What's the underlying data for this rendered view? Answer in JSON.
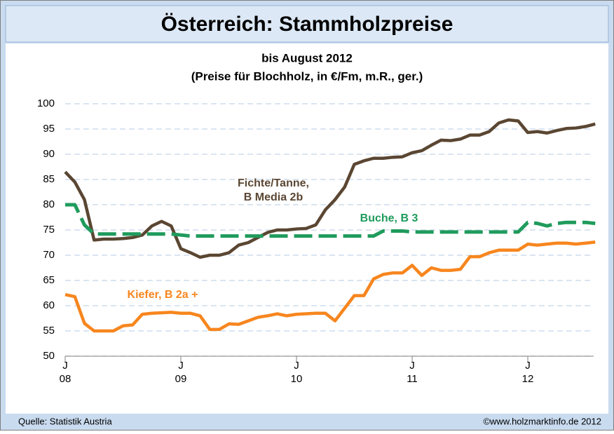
{
  "chart_data": {
    "type": "line",
    "title": "Österreich: Stammholzpreise",
    "subtitle": [
      "bis August 2012",
      "(Preise für Blochholz, in €/Fm, m.R., ger.)"
    ],
    "categories": [
      "J\n08",
      null,
      null,
      null,
      null,
      null,
      null,
      null,
      null,
      null,
      null,
      null,
      "J\n09",
      null,
      null,
      null,
      null,
      null,
      null,
      null,
      null,
      null,
      null,
      null,
      "J\n10",
      null,
      null,
      null,
      null,
      null,
      null,
      null,
      null,
      null,
      null,
      null,
      "J\n11",
      null,
      null,
      null,
      null,
      null,
      null,
      null,
      null,
      null,
      null,
      null,
      "J\n12",
      null,
      null,
      null,
      null,
      null,
      null,
      null
    ],
    "series": [
      {
        "name": "Fichte/Tanne,\nB Media 2b",
        "color": "#5a4632",
        "dash": false,
        "values": [
          86.5,
          84.5,
          81,
          73,
          73.2,
          73.2,
          73.3,
          73.5,
          74,
          75.8,
          76.7,
          75.8,
          71.3,
          70.5,
          69.6,
          70,
          70,
          70.5,
          72,
          72.5,
          73.5,
          74.5,
          75,
          75,
          75.2,
          75.3,
          76,
          79,
          81,
          83.5,
          88,
          88.7,
          89.2,
          89.2,
          89.4,
          89.5,
          90.3,
          90.7,
          91.8,
          92.8,
          92.7,
          93,
          93.8,
          93.8,
          94.5,
          96.2,
          96.8,
          96.6,
          94.3,
          94.5,
          94.2,
          94.7,
          95.1,
          95.2,
          95.5,
          96
        ]
      },
      {
        "name": "Buche, B 3",
        "color": "#1f9b5c",
        "dash": true,
        "values": [
          80,
          80,
          76,
          74.2,
          74.2,
          74.2,
          74.2,
          74.2,
          74.2,
          74.2,
          74.2,
          74.2,
          74,
          73.8,
          73.8,
          73.8,
          73.8,
          73.8,
          73.8,
          73.8,
          73.8,
          73.8,
          73.8,
          73.8,
          73.8,
          73.8,
          73.8,
          73.8,
          73.8,
          73.8,
          73.8,
          73.8,
          73.8,
          74.8,
          74.8,
          74.8,
          74.6,
          74.6,
          74.6,
          74.6,
          74.6,
          74.6,
          74.6,
          74.6,
          74.6,
          74.6,
          74.6,
          74.6,
          76.5,
          76.3,
          75.8,
          76.3,
          76.5,
          76.5,
          76.5,
          76.3
        ]
      },
      {
        "name": "Kiefer, B 2a +",
        "color": "#f7861e",
        "dash": false,
        "values": [
          62.2,
          61.8,
          56.5,
          55,
          55,
          55,
          56,
          56.2,
          58.3,
          58.5,
          58.6,
          58.7,
          58.5,
          58.5,
          58,
          55.3,
          55.3,
          56.4,
          56.3,
          57,
          57.7,
          58,
          58.4,
          58,
          58.3,
          58.4,
          58.5,
          58.5,
          57,
          59.5,
          62,
          62,
          65.3,
          66.2,
          66.5,
          66.5,
          68,
          66,
          67.5,
          67,
          67,
          67.2,
          69.7,
          69.7,
          70.5,
          71,
          71,
          71,
          72.2,
          72,
          72.2,
          72.4,
          72.4,
          72.2,
          72.4,
          72.6
        ]
      }
    ],
    "ylim": [
      50,
      100
    ],
    "yticks": [
      50,
      55,
      60,
      65,
      70,
      75,
      80,
      85,
      90,
      95,
      100
    ],
    "grid": true,
    "footer_left": "Quelle: Statistik Austria",
    "footer_right": "©www.holzmarktinfo.de 2012"
  }
}
